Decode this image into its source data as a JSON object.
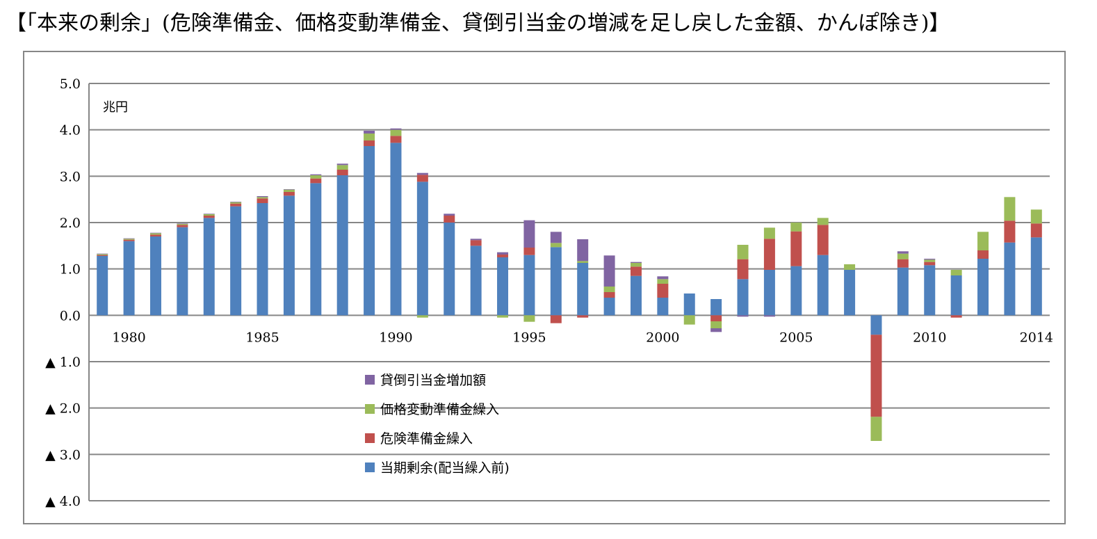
{
  "title": "【「本来の剰余」(危険準備金、価格変動準備金、貸倒引当金の増減を足し戻した金額、かんぽ除き)】",
  "chart_data": {
    "type": "bar",
    "stacked": true,
    "unit_label": "兆円",
    "ylim": [
      -4.0,
      5.0
    ],
    "y_ticks": [
      {
        "value": 5.0,
        "label": "5.0"
      },
      {
        "value": 4.0,
        "label": "4.0"
      },
      {
        "value": 3.0,
        "label": "3.0"
      },
      {
        "value": 2.0,
        "label": "2.0"
      },
      {
        "value": 1.0,
        "label": "1.0"
      },
      {
        "value": 0.0,
        "label": "0.0"
      },
      {
        "value": -1.0,
        "label": "▲ 1.0"
      },
      {
        "value": -2.0,
        "label": "▲ 2.0"
      },
      {
        "value": -3.0,
        "label": "▲ 3.0"
      },
      {
        "value": -4.0,
        "label": "▲ 4.0"
      }
    ],
    "x_tick_labels": [
      {
        "year": 1980,
        "label": "1980"
      },
      {
        "year": 1985,
        "label": "1985"
      },
      {
        "year": 1990,
        "label": "1990"
      },
      {
        "year": 1995,
        "label": "1995"
      },
      {
        "year": 2000,
        "label": "2000"
      },
      {
        "year": 2005,
        "label": "2005"
      },
      {
        "year": 2010,
        "label": "2010"
      },
      {
        "year": 2014,
        "label": "2014"
      }
    ],
    "grid": true,
    "legend_position": "center-left",
    "categories": [
      1979,
      1980,
      1981,
      1982,
      1983,
      1984,
      1985,
      1986,
      1987,
      1988,
      1989,
      1990,
      1991,
      1992,
      1993,
      1994,
      1995,
      1996,
      1997,
      1998,
      1999,
      2000,
      2001,
      2002,
      2003,
      2004,
      2005,
      2006,
      2007,
      2008,
      2009,
      2010,
      2011,
      2012,
      2013,
      2014
    ],
    "series": [
      {
        "name": "当期剰余(配当繰入前)",
        "color": "#4F81BD",
        "values": [
          1.28,
          1.6,
          1.7,
          1.9,
          2.1,
          2.35,
          2.42,
          2.58,
          2.85,
          3.02,
          3.65,
          3.72,
          2.88,
          2.0,
          1.5,
          1.25,
          1.3,
          1.47,
          1.13,
          0.38,
          0.85,
          0.38,
          0.47,
          0.35,
          0.78,
          0.98,
          1.06,
          1.3,
          0.98,
          -0.42,
          1.03,
          1.08,
          0.86,
          1.22,
          1.57,
          1.68
        ]
      },
      {
        "name": "危険準備金繰入",
        "color": "#C0504D",
        "values": [
          0.02,
          0.03,
          0.04,
          0.05,
          0.05,
          0.06,
          0.1,
          0.08,
          0.1,
          0.12,
          0.12,
          0.15,
          0.15,
          0.15,
          0.12,
          0.06,
          0.16,
          -0.17,
          -0.05,
          0.12,
          0.2,
          0.3,
          0.0,
          -0.13,
          0.43,
          0.67,
          0.75,
          0.65,
          0.0,
          -1.77,
          0.18,
          0.07,
          -0.05,
          0.18,
          0.47,
          0.3
        ]
      },
      {
        "name": "価格変動準備金繰入",
        "color": "#9BBB59",
        "values": [
          0.02,
          0.02,
          0.03,
          0.02,
          0.03,
          0.03,
          0.03,
          0.05,
          0.07,
          0.1,
          0.15,
          0.13,
          -0.05,
          0.0,
          0.0,
          -0.05,
          -0.14,
          0.09,
          0.04,
          0.12,
          0.08,
          0.1,
          -0.2,
          -0.15,
          0.31,
          0.24,
          0.19,
          0.15,
          0.12,
          -0.52,
          0.12,
          0.05,
          0.12,
          0.4,
          0.51,
          0.3
        ]
      },
      {
        "name": "貸倒引当金増加額",
        "color": "#8064A2",
        "values": [
          0.01,
          0.01,
          0.01,
          0.01,
          0.01,
          0.01,
          0.02,
          0.01,
          0.02,
          0.03,
          0.06,
          0.03,
          0.04,
          0.04,
          0.03,
          0.05,
          0.59,
          0.24,
          0.47,
          0.67,
          0.02,
          0.06,
          0.0,
          -0.08,
          -0.03,
          -0.03,
          0.0,
          0.0,
          0.0,
          0.0,
          0.05,
          0.02,
          0.0,
          0.0,
          0.0,
          0.0
        ]
      }
    ]
  }
}
